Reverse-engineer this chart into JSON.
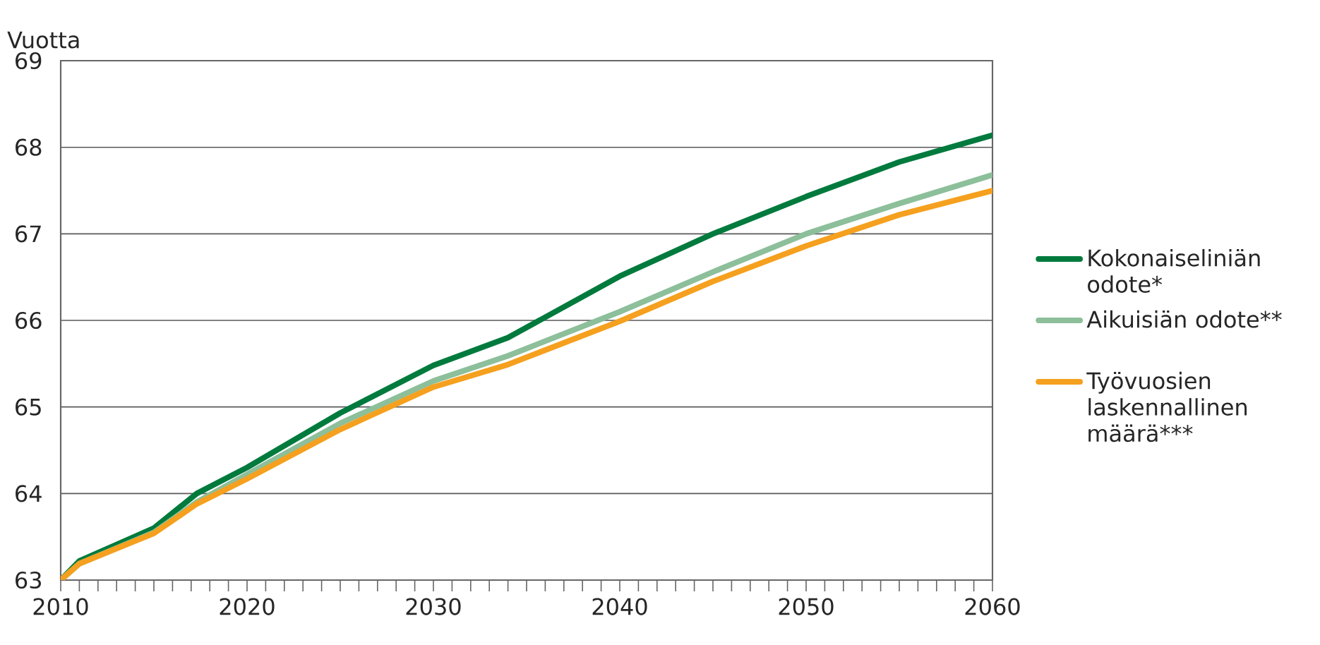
{
  "chart_data": {
    "type": "line",
    "ylabel": "Vuotta",
    "x": [
      2010,
      2011,
      2015,
      2017.3,
      2020,
      2025,
      2030,
      2034,
      2040,
      2045,
      2050,
      2055,
      2060
    ],
    "series": [
      {
        "name": "Kokonaiseliniän odote*",
        "color": "#007a3d",
        "values": [
          63,
          63.22,
          63.6,
          64.0,
          64.3,
          64.93,
          65.48,
          65.8,
          66.51,
          67.0,
          67.43,
          67.83,
          68.14
        ]
      },
      {
        "name": "Aikuisiän odote**",
        "color": "#8cbf9a",
        "values": [
          63,
          63.19,
          63.55,
          63.9,
          64.22,
          64.81,
          65.3,
          65.59,
          66.1,
          66.56,
          67.0,
          67.35,
          67.68
        ]
      },
      {
        "name": "Työvuosien laskennallinen määrä***",
        "color": "#f5a01e",
        "values": [
          63,
          63.19,
          63.54,
          63.88,
          64.17,
          64.74,
          65.23,
          65.49,
          65.99,
          66.45,
          66.86,
          67.22,
          67.5
        ]
      }
    ],
    "xlim": [
      2010,
      2060
    ],
    "ylim": [
      63,
      69
    ],
    "xticks": [
      2010,
      {
        "value": 2011,
        "label": null
      },
      {
        "value": 2012,
        "label": null
      },
      {
        "value": 2013,
        "label": null
      },
      {
        "value": 2014,
        "label": null
      },
      {
        "value": 2015,
        "label": null
      },
      {
        "value": 2016,
        "label": null
      },
      {
        "value": 2017,
        "label": null
      },
      {
        "value": 2018,
        "label": null
      },
      {
        "value": 2019,
        "label": null
      },
      2020,
      {
        "value": 2021,
        "label": null
      },
      {
        "value": 2022,
        "label": null
      },
      {
        "value": 2023,
        "label": null
      },
      {
        "value": 2024,
        "label": null
      },
      {
        "value": 2025,
        "label": null
      },
      {
        "value": 2026,
        "label": null
      },
      {
        "value": 2027,
        "label": null
      },
      {
        "value": 2028,
        "label": null
      },
      {
        "value": 2029,
        "label": null
      },
      2030,
      {
        "value": 2031,
        "label": null
      },
      {
        "value": 2032,
        "label": null
      },
      {
        "value": 2033,
        "label": null
      },
      {
        "value": 2034,
        "label": null
      },
      {
        "value": 2035,
        "label": null
      },
      {
        "value": 2036,
        "label": null
      },
      {
        "value": 2037,
        "label": null
      },
      {
        "value": 2038,
        "label": null
      },
      {
        "value": 2039,
        "label": null
      },
      2040,
      {
        "value": 2041,
        "label": null
      },
      {
        "value": 2042,
        "label": null
      },
      {
        "value": 2043,
        "label": null
      },
      {
        "value": 2044,
        "label": null
      },
      {
        "value": 2045,
        "label": null
      },
      {
        "value": 2046,
        "label": null
      },
      {
        "value": 2047,
        "label": null
      },
      {
        "value": 2048,
        "label": null
      },
      {
        "value": 2049,
        "label": null
      },
      2050,
      {
        "value": 2051,
        "label": null
      },
      {
        "value": 2052,
        "label": null
      },
      {
        "value": 2053,
        "label": null
      },
      {
        "value": 2054,
        "label": null
      },
      {
        "value": 2055,
        "label": null
      },
      {
        "value": 2056,
        "label": null
      },
      {
        "value": 2057,
        "label": null
      },
      {
        "value": 2058,
        "label": null
      },
      {
        "value": 2059,
        "label": null
      },
      2060
    ],
    "yticks": [
      63,
      64,
      65,
      66,
      67,
      68,
      69
    ],
    "grid": "y",
    "legend": "right",
    "marker": "none",
    "line_style": "solid"
  }
}
